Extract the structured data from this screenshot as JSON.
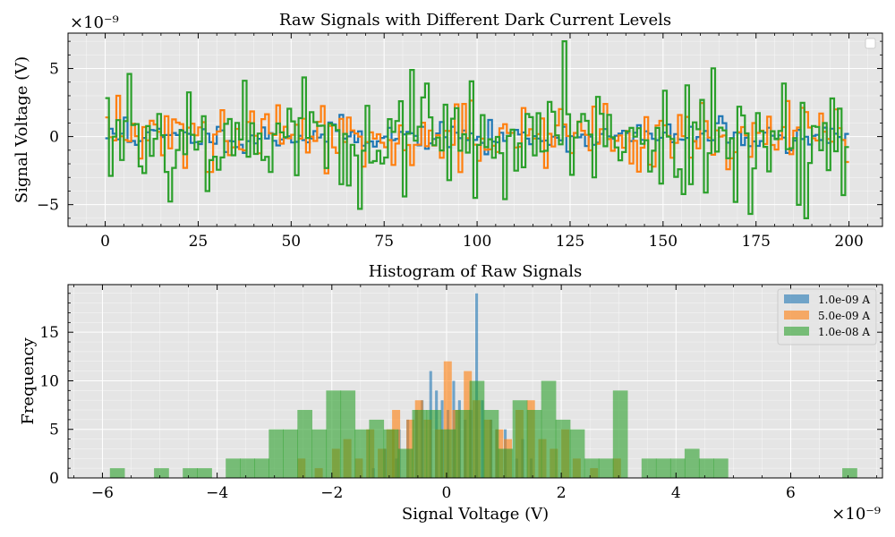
{
  "chart_data": [
    {
      "type": "line",
      "title": "Raw Signals with Different Dark Current Levels",
      "xlabel": "",
      "ylabel": "Signal Voltage (V)",
      "y_exponent_label": "×10⁻⁹",
      "xlim": [
        -10,
        209
      ],
      "ylim": [
        -6.6,
        7.6
      ],
      "xticks": [
        0,
        25,
        50,
        75,
        100,
        125,
        150,
        175,
        200
      ],
      "yticks": [
        -5,
        0,
        5
      ],
      "ytick_labels": [
        "−5",
        "0",
        "5"
      ],
      "grid": true,
      "legend": "top-right (empty)",
      "drawstyle": "steps",
      "series": [
        {
          "color": "#1f77b4",
          "seed": 11,
          "sigma": 0.45,
          "spikes": [
            [
              5,
              1.4
            ],
            [
              37,
              -1.2
            ],
            [
              63,
              1.6
            ],
            [
              102,
              -1.3
            ],
            [
              165,
              1.5
            ],
            [
              183,
              -1.2
            ]
          ]
        },
        {
          "color": "#ff7f0e",
          "seed": 29,
          "sigma": 1.0,
          "spikes": [
            [
              3,
              3.0
            ],
            [
              21,
              -2.3
            ],
            [
              28,
              -2.6
            ],
            [
              46,
              2.3
            ],
            [
              59,
              -2.7
            ],
            [
              69,
              -2.2
            ],
            [
              82,
              -2.1
            ],
            [
              96,
              2.4
            ],
            [
              118,
              -2.3
            ],
            [
              131,
              2.2
            ],
            [
              147,
              -2.2
            ],
            [
              167,
              -2.4
            ],
            [
              188,
              1.8
            ],
            [
              196,
              2.0
            ]
          ]
        },
        {
          "color": "#2ca02c",
          "seed": 53,
          "sigma": 2.0,
          "spikes": [
            [
              6,
              4.6
            ],
            [
              18,
              -2.3
            ],
            [
              37,
              4.1
            ],
            [
              44,
              -2.6
            ],
            [
              63,
              -3.5
            ],
            [
              82,
              4.9
            ],
            [
              92,
              -3.2
            ],
            [
              99,
              -4.5
            ],
            [
              123,
              7.0
            ],
            [
              131,
              -3.0
            ],
            [
              157,
              -3.5
            ],
            [
              169,
              -4.8
            ],
            [
              182,
              3.9
            ],
            [
              188,
              -6.0
            ],
            [
              195,
              2.8
            ],
            [
              198,
              -4.3
            ]
          ]
        }
      ]
    },
    {
      "type": "histogram",
      "title": "Histogram of Raw Signals",
      "xlabel": "Signal Voltage (V)",
      "x_exponent_label": "×10⁻⁹",
      "ylabel": "Frequency",
      "xlim": [
        -6.6,
        7.6
      ],
      "ylim": [
        0,
        19.9
      ],
      "xticks": [
        -6,
        -4,
        -2,
        0,
        2,
        4,
        6
      ],
      "xtick_labels": [
        "−6",
        "−4",
        "−2",
        "0",
        "2",
        "4",
        "6"
      ],
      "yticks": [
        0,
        5,
        10,
        15
      ],
      "grid": true,
      "legend": "top-right",
      "alpha": 0.6,
      "series": [
        {
          "name": "1.0e-09 A",
          "color": "#1f77b4",
          "bin_width": 0.048,
          "bins": [
            [
              -1.3,
              1
            ],
            [
              -1.1,
              3
            ],
            [
              -0.9,
              2
            ],
            [
              -0.85,
              5
            ],
            [
              -0.7,
              6
            ],
            [
              -0.55,
              7
            ],
            [
              -0.45,
              8
            ],
            [
              -0.3,
              11
            ],
            [
              -0.2,
              9
            ],
            [
              -0.1,
              8
            ],
            [
              0.0,
              7
            ],
            [
              0.1,
              10
            ],
            [
              0.2,
              8
            ],
            [
              0.3,
              6
            ],
            [
              0.4,
              7
            ],
            [
              0.5,
              19
            ],
            [
              0.6,
              8
            ],
            [
              0.75,
              6
            ],
            [
              0.85,
              5
            ],
            [
              1.0,
              5
            ],
            [
              1.2,
              2
            ],
            [
              1.3,
              4
            ],
            [
              1.45,
              2
            ]
          ]
        },
        {
          "name": "5.0e-09 A",
          "color": "#ff7f0e",
          "bin_width": 0.14,
          "bins": [
            [
              -2.6,
              2
            ],
            [
              -2.3,
              1
            ],
            [
              -2.0,
              3
            ],
            [
              -1.8,
              4
            ],
            [
              -1.6,
              2
            ],
            [
              -1.4,
              5
            ],
            [
              -1.2,
              3
            ],
            [
              -1.05,
              5
            ],
            [
              -0.95,
              7
            ],
            [
              -0.7,
              6
            ],
            [
              -0.55,
              8
            ],
            [
              -0.4,
              6
            ],
            [
              -0.2,
              5
            ],
            [
              -0.05,
              12
            ],
            [
              0.1,
              7
            ],
            [
              0.3,
              11
            ],
            [
              0.45,
              8
            ],
            [
              0.65,
              6
            ],
            [
              0.85,
              5
            ],
            [
              1.0,
              4
            ],
            [
              1.2,
              7
            ],
            [
              1.4,
              8
            ],
            [
              1.6,
              4
            ],
            [
              1.8,
              3
            ],
            [
              2.0,
              5
            ],
            [
              2.2,
              2
            ],
            [
              2.5,
              1
            ],
            [
              2.9,
              2
            ]
          ]
        },
        {
          "name": "1.0e-08 A",
          "color": "#2ca02c",
          "bin_width": 0.26,
          "bins": [
            [
              -5.87,
              1
            ],
            [
              -5.1,
              1
            ],
            [
              -4.6,
              1
            ],
            [
              -4.35,
              1
            ],
            [
              -3.85,
              2
            ],
            [
              -3.6,
              2
            ],
            [
              -3.35,
              2
            ],
            [
              -3.1,
              5
            ],
            [
              -2.85,
              5
            ],
            [
              -2.6,
              7
            ],
            [
              -2.35,
              5
            ],
            [
              -2.1,
              9
            ],
            [
              -1.85,
              9
            ],
            [
              -1.6,
              5
            ],
            [
              -1.35,
              6
            ],
            [
              -1.1,
              5
            ],
            [
              -0.85,
              3
            ],
            [
              -0.6,
              7
            ],
            [
              -0.35,
              7
            ],
            [
              -0.1,
              5
            ],
            [
              0.15,
              7
            ],
            [
              0.4,
              10
            ],
            [
              0.65,
              7
            ],
            [
              0.9,
              3
            ],
            [
              1.15,
              8
            ],
            [
              1.4,
              7
            ],
            [
              1.65,
              10
            ],
            [
              1.9,
              6
            ],
            [
              2.15,
              5
            ],
            [
              2.4,
              2
            ],
            [
              2.65,
              2
            ],
            [
              2.9,
              9
            ],
            [
              3.4,
              2
            ],
            [
              3.65,
              2
            ],
            [
              3.9,
              2
            ],
            [
              4.15,
              3
            ],
            [
              4.4,
              2
            ],
            [
              4.65,
              2
            ],
            [
              6.9,
              1
            ]
          ]
        }
      ]
    }
  ]
}
